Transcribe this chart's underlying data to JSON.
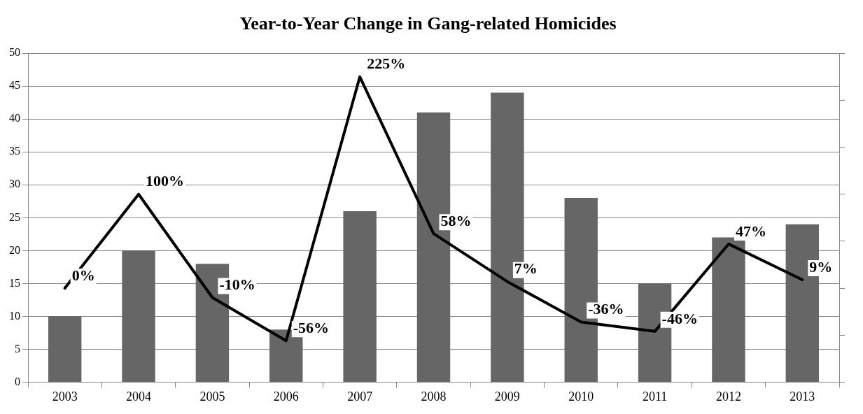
{
  "chart_data": {
    "type": "bar",
    "title": "Year-to-Year Change in Gang-related Homicides",
    "categories": [
      "2003",
      "2004",
      "2005",
      "2006",
      "2007",
      "2008",
      "2009",
      "2010",
      "2011",
      "2012",
      "2013"
    ],
    "series": [
      {
        "color": "#666666",
        "values": [
          10,
          20,
          18,
          8,
          26,
          41,
          44,
          28,
          15,
          22,
          24
        ]
      },
      {
        "type": "line",
        "axis": "y2",
        "color": "#000000",
        "marker": "none",
        "values": [
          0,
          100,
          -10,
          -56,
          225,
          58,
          7,
          -36,
          -46,
          47,
          9
        ],
        "value_labels": [
          "0%",
          "100%",
          "-10%",
          "-56%",
          "225%",
          "58%",
          "7%",
          "-36%",
          "-46%",
          "47%",
          "9%"
        ]
      }
    ],
    "ylim": [
      0,
      50
    ],
    "yticks": [
      0,
      5,
      10,
      15,
      20,
      25,
      30,
      35,
      40,
      45,
      50
    ],
    "y2lim": [
      -100,
      250
    ],
    "y2ticks": [
      {
        "value": -100,
        "label": null
      },
      {
        "value": -50,
        "label": null
      },
      {
        "value": 0,
        "label": null
      },
      {
        "value": 50,
        "label": null
      },
      {
        "value": 100,
        "label": null
      },
      {
        "value": 150,
        "label": null
      },
      {
        "value": 200,
        "label": null
      },
      {
        "value": 250,
        "label": null
      }
    ],
    "grid": "y",
    "legend": false
  }
}
